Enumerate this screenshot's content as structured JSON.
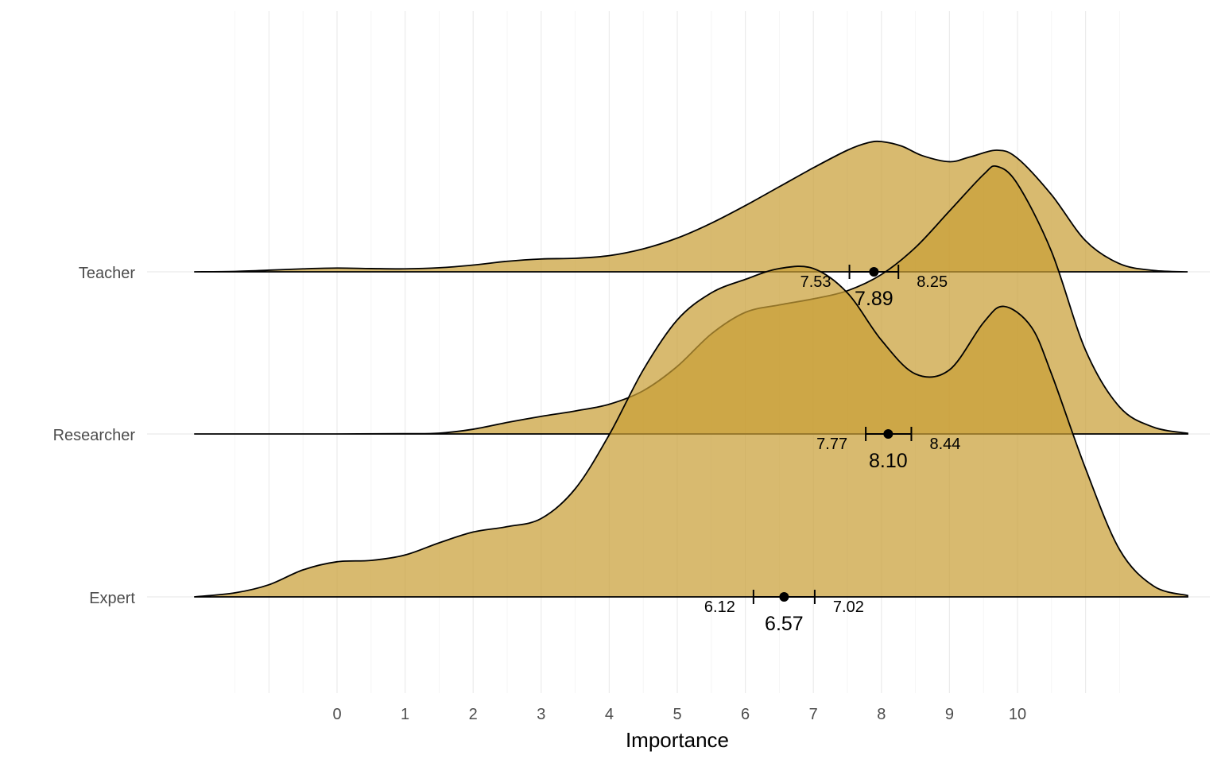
{
  "chart_data": {
    "type": "ridgeline",
    "xlabel": "Importance",
    "x_ticks": [
      0,
      1,
      2,
      3,
      4,
      5,
      6,
      7,
      8,
      9,
      10
    ],
    "xlim": [
      -2.1,
      12.5
    ],
    "categories": [
      "Expert",
      "Researcher",
      "Teacher"
    ],
    "fill_color": "#c9a037",
    "fill_opacity": 0.72,
    "grid": true,
    "series": [
      {
        "name": "Teacher",
        "mean": 7.89,
        "ci_low": 7.53,
        "ci_high": 8.25,
        "mean_label": "7.89",
        "ci_low_label": "7.53",
        "ci_high_label": "8.25",
        "density": [
          [
            -2.1,
            0
          ],
          [
            -1.5,
            0.003
          ],
          [
            -1,
            0.012
          ],
          [
            -0.5,
            0.022
          ],
          [
            0,
            0.028
          ],
          [
            0.5,
            0.024
          ],
          [
            1,
            0.022
          ],
          [
            1.5,
            0.03
          ],
          [
            2,
            0.05
          ],
          [
            2.5,
            0.078
          ],
          [
            3,
            0.095
          ],
          [
            3.5,
            0.1
          ],
          [
            4,
            0.12
          ],
          [
            4.5,
            0.17
          ],
          [
            5,
            0.25
          ],
          [
            5.5,
            0.36
          ],
          [
            6,
            0.49
          ],
          [
            6.5,
            0.63
          ],
          [
            7,
            0.77
          ],
          [
            7.5,
            0.9
          ],
          [
            7.8,
            0.955
          ],
          [
            8,
            0.964
          ],
          [
            8.3,
            0.93
          ],
          [
            8.6,
            0.86
          ],
          [
            9,
            0.815
          ],
          [
            9.3,
            0.85
          ],
          [
            9.7,
            0.9
          ],
          [
            10,
            0.84
          ],
          [
            10.5,
            0.57
          ],
          [
            11,
            0.23
          ],
          [
            11.5,
            0.06
          ],
          [
            12,
            0.01
          ],
          [
            12.5,
            0
          ]
        ]
      },
      {
        "name": "Researcher",
        "mean": 8.1,
        "ci_low": 7.77,
        "ci_high": 8.44,
        "mean_label": "8.10",
        "ci_low_label": "7.77",
        "ci_high_label": "8.44",
        "density": [
          [
            -2.1,
            0
          ],
          [
            0,
            0
          ],
          [
            1,
            0.002
          ],
          [
            1.5,
            0.006
          ],
          [
            2,
            0.035
          ],
          [
            2.5,
            0.085
          ],
          [
            3,
            0.13
          ],
          [
            3.5,
            0.17
          ],
          [
            4,
            0.22
          ],
          [
            4.5,
            0.32
          ],
          [
            5,
            0.5
          ],
          [
            5.5,
            0.74
          ],
          [
            6,
            0.9
          ],
          [
            6.5,
            0.955
          ],
          [
            7,
            1.0
          ],
          [
            7.5,
            1.06
          ],
          [
            8,
            1.18
          ],
          [
            8.5,
            1.38
          ],
          [
            9,
            1.65
          ],
          [
            9.5,
            1.92
          ],
          [
            9.7,
            1.98
          ],
          [
            10,
            1.85
          ],
          [
            10.5,
            1.35
          ],
          [
            11,
            0.62
          ],
          [
            11.5,
            0.2
          ],
          [
            12,
            0.05
          ],
          [
            12.5,
            0.005
          ]
        ]
      },
      {
        "name": "Expert",
        "mean": 6.57,
        "ci_low": 6.12,
        "ci_high": 7.02,
        "mean_label": "6.57",
        "ci_low_label": "6.12",
        "ci_high_label": "7.02",
        "density": [
          [
            -2.1,
            0
          ],
          [
            -1.5,
            0.03
          ],
          [
            -1,
            0.09
          ],
          [
            -0.5,
            0.2
          ],
          [
            0,
            0.26
          ],
          [
            0.5,
            0.27
          ],
          [
            1,
            0.31
          ],
          [
            1.5,
            0.4
          ],
          [
            2,
            0.48
          ],
          [
            2.5,
            0.52
          ],
          [
            3,
            0.58
          ],
          [
            3.5,
            0.8
          ],
          [
            4,
            1.2
          ],
          [
            4.5,
            1.68
          ],
          [
            5,
            2.05
          ],
          [
            5.5,
            2.25
          ],
          [
            6,
            2.35
          ],
          [
            6.5,
            2.43
          ],
          [
            7,
            2.43
          ],
          [
            7.5,
            2.25
          ],
          [
            8,
            1.9
          ],
          [
            8.5,
            1.65
          ],
          [
            9,
            1.68
          ],
          [
            9.5,
            2.03
          ],
          [
            9.8,
            2.15
          ],
          [
            10.2,
            2.0
          ],
          [
            10.5,
            1.65
          ],
          [
            11,
            0.95
          ],
          [
            11.5,
            0.35
          ],
          [
            12,
            0.08
          ],
          [
            12.5,
            0.01
          ]
        ]
      }
    ]
  }
}
